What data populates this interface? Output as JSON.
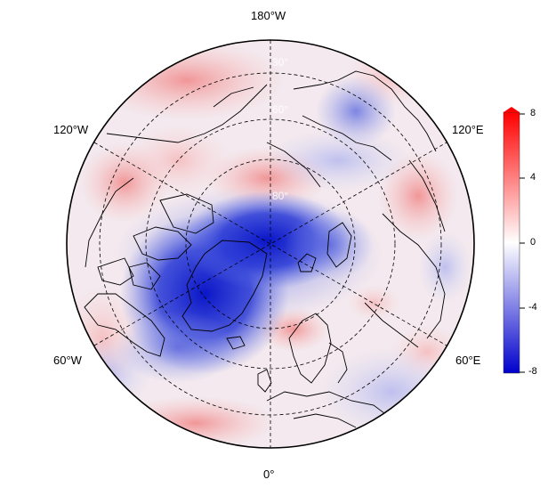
{
  "map": {
    "projection": "north-polar-stereographic",
    "coastlines": "continental-outlines",
    "colormap": "blue-white-red",
    "colors": {
      "negative": "#0000cc",
      "neutral": "#ffffff",
      "positive": "#ff0000"
    },
    "longitude_labels": {
      "top": "180°W",
      "bottom": "0°",
      "upper_left": "120°W",
      "lower_left": "60°W",
      "upper_right": "120°E",
      "lower_right": "60°E"
    },
    "latitude_labels": [
      "30°",
      "60°",
      "80°"
    ],
    "colorbar": {
      "min": -8,
      "max": 8,
      "ticks": [
        "8",
        "4",
        "0",
        "-4",
        "-8"
      ]
    }
  }
}
